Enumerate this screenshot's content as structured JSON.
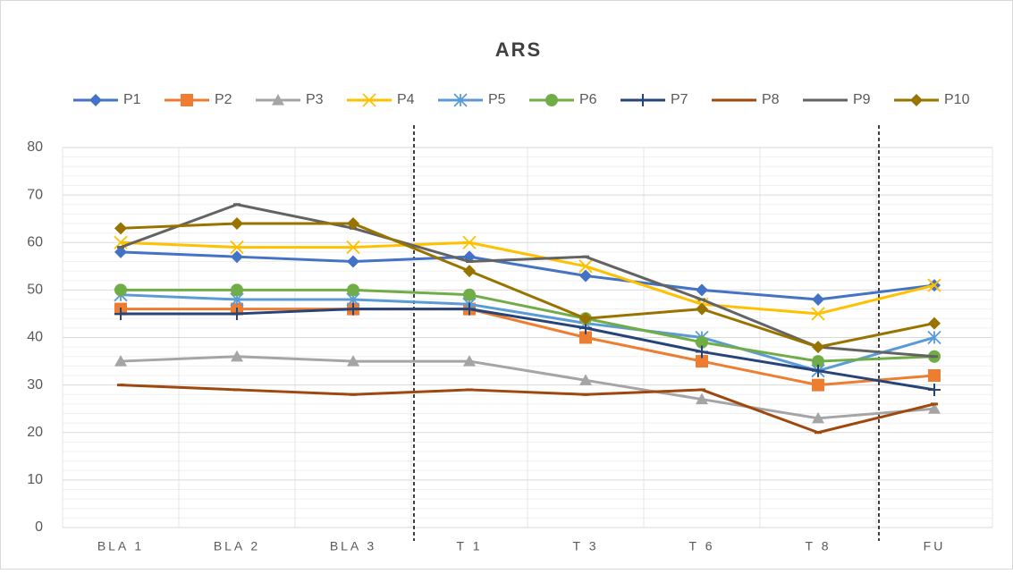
{
  "chart_data": {
    "type": "line",
    "title": "ARS",
    "categories": [
      "BLA 1",
      "BLA 2",
      "BLA 3",
      "T 1",
      "T 3",
      "T 6",
      "T 8",
      "FU"
    ],
    "ylim": [
      0,
      80
    ],
    "yticks": [
      0,
      10,
      20,
      30,
      40,
      50,
      60,
      70,
      80
    ],
    "grid": true,
    "legend": "top",
    "series": [
      {
        "name": "P1",
        "color": "#4472c4",
        "marker": "diamond",
        "values": [
          58,
          57,
          56,
          57,
          53,
          50,
          48,
          51
        ]
      },
      {
        "name": "P2",
        "color": "#ed7d31",
        "marker": "square",
        "values": [
          46,
          46,
          46,
          46,
          40,
          35,
          30,
          32
        ]
      },
      {
        "name": "P3",
        "color": "#a5a5a5",
        "marker": "triangle",
        "values": [
          35,
          36,
          35,
          35,
          31,
          27,
          23,
          25
        ]
      },
      {
        "name": "P4",
        "color": "#ffc000",
        "marker": "x",
        "values": [
          60,
          59,
          59,
          60,
          55,
          47,
          45,
          51
        ]
      },
      {
        "name": "P5",
        "color": "#5b9bd5",
        "marker": "star",
        "values": [
          49,
          48,
          48,
          47,
          43,
          40,
          33,
          40
        ]
      },
      {
        "name": "P6",
        "color": "#70ad47",
        "marker": "circle",
        "values": [
          50,
          50,
          50,
          49,
          44,
          39,
          35,
          36
        ]
      },
      {
        "name": "P7",
        "color": "#264478",
        "marker": "plus",
        "values": [
          45,
          45,
          46,
          46,
          42,
          37,
          33,
          29
        ]
      },
      {
        "name": "P8",
        "color": "#9e480e",
        "marker": "dash",
        "values": [
          30,
          29,
          28,
          29,
          28,
          29,
          20,
          26
        ]
      },
      {
        "name": "P9",
        "color": "#636363",
        "marker": "dash",
        "values": [
          59,
          68,
          63,
          56,
          57,
          48,
          38,
          36
        ]
      },
      {
        "name": "P10",
        "color": "#997300",
        "marker": "diamond",
        "values": [
          63,
          64,
          64,
          54,
          44,
          46,
          38,
          43
        ]
      }
    ]
  }
}
